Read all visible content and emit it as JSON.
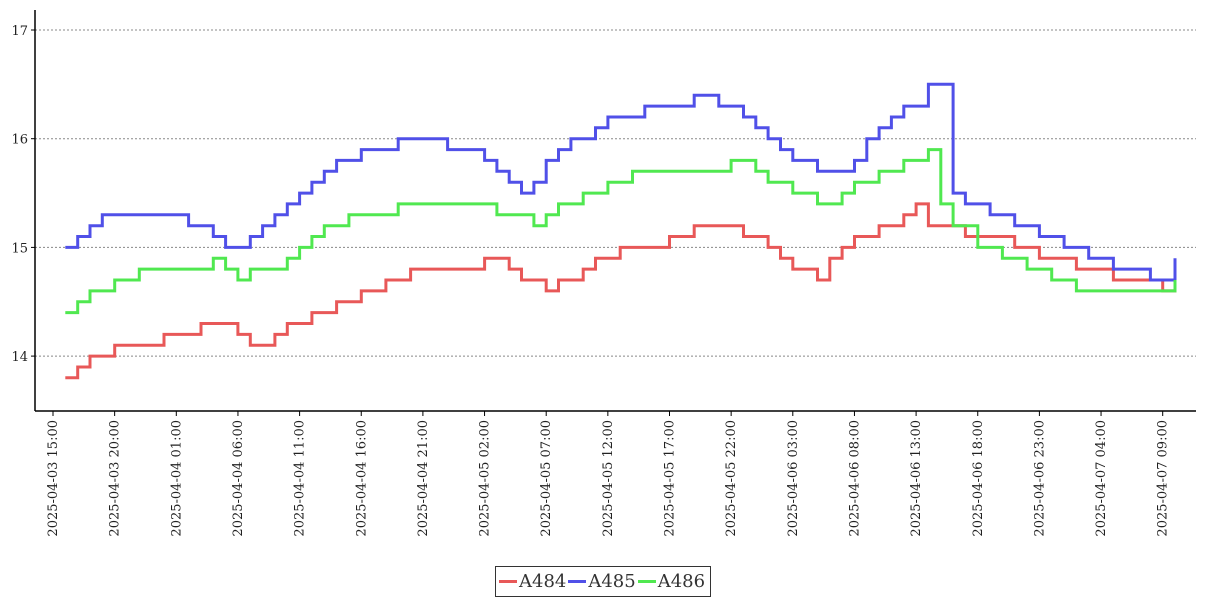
{
  "chart_data": {
    "type": "line",
    "title": "",
    "xlabel": "",
    "ylabel": "",
    "ylim": [
      13.52,
      17.17
    ],
    "yticks": [
      14,
      15,
      16,
      17
    ],
    "grid": "horizontal dotted",
    "legend_position": "bottom-center",
    "x_tick_labels": [
      "2025-04-03 15:00",
      "2025-04-03 20:00",
      "2025-04-04 01:00",
      "2025-04-04 06:00",
      "2025-04-04 11:00",
      "2025-04-04 16:00",
      "2025-04-04 21:00",
      "2025-04-05 02:00",
      "2025-04-05 07:00",
      "2025-04-05 12:00",
      "2025-04-05 17:00",
      "2025-04-05 22:00",
      "2025-04-06 03:00",
      "2025-04-06 08:00",
      "2025-04-06 13:00",
      "2025-04-06 18:00",
      "2025-04-06 23:00",
      "2025-04-07 04:00",
      "2025-04-07 09:00"
    ],
    "series": [
      {
        "name": "A484",
        "color": "#e85858",
        "x": [
          "2025-04-03 16:00",
          "2025-04-03 17:00",
          "2025-04-03 18:00",
          "2025-04-03 20:00",
          "2025-04-03 21:00",
          "2025-04-04 00:00",
          "2025-04-04 03:00",
          "2025-04-04 06:00",
          "2025-04-04 07:00",
          "2025-04-04 09:00",
          "2025-04-04 10:00",
          "2025-04-04 12:00",
          "2025-04-04 14:00",
          "2025-04-04 16:00",
          "2025-04-04 18:00",
          "2025-04-04 20:00",
          "2025-04-05 01:00",
          "2025-04-05 02:00",
          "2025-04-05 04:00",
          "2025-04-05 05:00",
          "2025-04-05 07:00",
          "2025-04-05 08:00",
          "2025-04-05 10:00",
          "2025-04-05 11:00",
          "2025-04-05 13:00",
          "2025-04-05 17:00",
          "2025-04-05 18:00",
          "2025-04-05 19:00",
          "2025-04-05 21:00",
          "2025-04-05 23:00",
          "2025-04-06 01:00",
          "2025-04-06 02:00",
          "2025-04-06 03:00",
          "2025-04-06 05:00",
          "2025-04-06 06:00",
          "2025-04-06 07:00",
          "2025-04-06 08:00",
          "2025-04-06 10:00",
          "2025-04-06 12:00",
          "2025-04-06 13:00",
          "2025-04-06 14:00",
          "2025-04-06 17:00",
          "2025-04-06 19:00",
          "2025-04-06 21:00",
          "2025-04-06 23:00",
          "2025-04-07 02:00",
          "2025-04-07 05:00",
          "2025-04-07 09:00",
          "2025-04-07 10:00"
        ],
        "values": [
          13.8,
          13.9,
          14.0,
          14.1,
          14.1,
          14.2,
          14.3,
          14.2,
          14.1,
          14.2,
          14.3,
          14.4,
          14.5,
          14.6,
          14.7,
          14.8,
          14.8,
          14.9,
          14.8,
          14.7,
          14.6,
          14.7,
          14.8,
          14.9,
          15.0,
          15.1,
          15.1,
          15.2,
          15.2,
          15.1,
          15.0,
          14.9,
          14.8,
          14.7,
          14.9,
          15.0,
          15.1,
          15.2,
          15.3,
          15.4,
          15.2,
          15.1,
          15.1,
          15.0,
          14.9,
          14.8,
          14.7,
          14.6,
          14.7
        ]
      },
      {
        "name": "A485",
        "color": "#5050e8",
        "x": [
          "2025-04-03 16:00",
          "2025-04-03 17:00",
          "2025-04-03 18:00",
          "2025-04-03 19:00",
          "2025-04-04 00:00",
          "2025-04-04 02:00",
          "2025-04-04 04:00",
          "2025-04-04 05:00",
          "2025-04-04 06:00",
          "2025-04-04 07:00",
          "2025-04-04 08:00",
          "2025-04-04 09:00",
          "2025-04-04 10:00",
          "2025-04-04 11:00",
          "2025-04-04 12:00",
          "2025-04-04 13:00",
          "2025-04-04 14:00",
          "2025-04-04 16:00",
          "2025-04-04 19:00",
          "2025-04-04 23:00",
          "2025-04-05 02:00",
          "2025-04-05 03:00",
          "2025-04-05 04:00",
          "2025-04-05 05:00",
          "2025-04-05 06:00",
          "2025-04-05 07:00",
          "2025-04-05 08:00",
          "2025-04-05 09:00",
          "2025-04-05 10:00",
          "2025-04-05 11:00",
          "2025-04-05 12:00",
          "2025-04-05 14:00",
          "2025-04-05 15:00",
          "2025-04-05 16:00",
          "2025-04-05 19:00",
          "2025-04-05 21:00",
          "2025-04-05 23:00",
          "2025-04-06 00:00",
          "2025-04-06 01:00",
          "2025-04-06 02:00",
          "2025-04-06 03:00",
          "2025-04-06 05:00",
          "2025-04-06 07:00",
          "2025-04-06 08:00",
          "2025-04-06 09:00",
          "2025-04-06 10:00",
          "2025-04-06 11:00",
          "2025-04-06 12:00",
          "2025-04-06 14:00",
          "2025-04-06 15:00",
          "2025-04-06 16:00",
          "2025-04-06 17:00",
          "2025-04-06 19:00",
          "2025-04-06 21:00",
          "2025-04-06 23:00",
          "2025-04-07 01:00",
          "2025-04-07 03:00",
          "2025-04-07 05:00",
          "2025-04-07 08:00",
          "2025-04-07 10:00"
        ],
        "values": [
          15.0,
          15.1,
          15.2,
          15.3,
          15.3,
          15.2,
          15.1,
          15.0,
          15.0,
          15.1,
          15.2,
          15.3,
          15.4,
          15.5,
          15.6,
          15.7,
          15.8,
          15.9,
          16.0,
          15.9,
          15.8,
          15.7,
          15.6,
          15.5,
          15.6,
          15.8,
          15.9,
          16.0,
          16.0,
          16.1,
          16.2,
          16.2,
          16.3,
          16.3,
          16.4,
          16.3,
          16.2,
          16.1,
          16.0,
          15.9,
          15.8,
          15.7,
          15.7,
          15.8,
          16.0,
          16.1,
          16.2,
          16.3,
          16.5,
          16.5,
          15.5,
          15.4,
          15.3,
          15.2,
          15.1,
          15.0,
          14.9,
          14.8,
          14.7,
          14.9
        ]
      },
      {
        "name": "A486",
        "color": "#50e850",
        "x": [
          "2025-04-03 16:00",
          "2025-04-03 17:00",
          "2025-04-03 18:00",
          "2025-04-03 20:00",
          "2025-04-03 22:00",
          "2025-04-04 01:00",
          "2025-04-04 04:00",
          "2025-04-04 05:00",
          "2025-04-04 06:00",
          "2025-04-04 07:00",
          "2025-04-04 10:00",
          "2025-04-04 11:00",
          "2025-04-04 12:00",
          "2025-04-04 13:00",
          "2025-04-04 15:00",
          "2025-04-04 17:00",
          "2025-04-04 19:00",
          "2025-04-05 02:00",
          "2025-04-05 03:00",
          "2025-04-05 06:00",
          "2025-04-05 07:00",
          "2025-04-05 08:00",
          "2025-04-05 10:00",
          "2025-04-05 12:00",
          "2025-04-05 14:00",
          "2025-04-05 16:00",
          "2025-04-05 22:00",
          "2025-04-06 00:00",
          "2025-04-06 01:00",
          "2025-04-06 03:00",
          "2025-04-06 05:00",
          "2025-04-06 07:00",
          "2025-04-06 08:00",
          "2025-04-06 10:00",
          "2025-04-06 12:00",
          "2025-04-06 14:00",
          "2025-04-06 15:00",
          "2025-04-06 16:00",
          "2025-04-06 18:00",
          "2025-04-06 20:00",
          "2025-04-06 22:00",
          "2025-04-07 00:00",
          "2025-04-07 02:00",
          "2025-04-07 04:00",
          "2025-04-07 05:00",
          "2025-04-07 10:00"
        ],
        "values": [
          14.4,
          14.5,
          14.6,
          14.7,
          14.8,
          14.8,
          14.9,
          14.8,
          14.7,
          14.8,
          14.9,
          15.0,
          15.1,
          15.2,
          15.3,
          15.3,
          15.4,
          15.4,
          15.3,
          15.2,
          15.3,
          15.4,
          15.5,
          15.6,
          15.7,
          15.7,
          15.8,
          15.7,
          15.6,
          15.5,
          15.4,
          15.5,
          15.6,
          15.7,
          15.8,
          15.9,
          15.4,
          15.2,
          15.0,
          14.9,
          14.8,
          14.7,
          14.6,
          14.6,
          14.6,
          14.7
        ]
      }
    ]
  }
}
